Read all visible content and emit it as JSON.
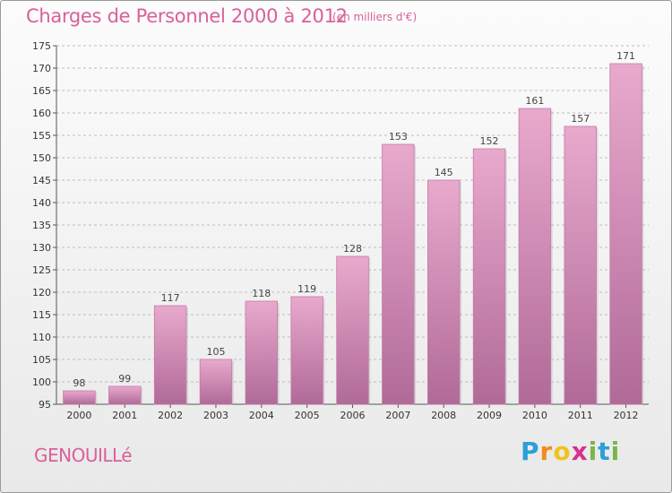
{
  "title": "Charges de Personnel 2000 à 2012",
  "subtitle": "(en milliers d'€)",
  "commune": "GENOUILLé",
  "brand": {
    "letters": [
      "P",
      "r",
      "o",
      "x",
      "i",
      "t",
      "i"
    ],
    "colors": [
      "#2b9fd8",
      "#f28c1e",
      "#f2c21e",
      "#d9308c",
      "#7ab648",
      "#2b9fd8",
      "#7ab648"
    ]
  },
  "colors": {
    "accent": "#d9609a",
    "bar_light": "#e8a8cc",
    "bar_dark": "#b06a98"
  },
  "chart_data": {
    "type": "bar",
    "title": "Charges de Personnel 2000 à 2012",
    "subtitle": "(en milliers d'€)",
    "categories": [
      "2000",
      "2001",
      "2002",
      "2003",
      "2004",
      "2005",
      "2006",
      "2007",
      "2008",
      "2009",
      "2010",
      "2011",
      "2012"
    ],
    "values": [
      98,
      99,
      117,
      105,
      118,
      119,
      128,
      153,
      145,
      152,
      161,
      157,
      171
    ],
    "ylim": [
      95,
      175
    ],
    "yticks": [
      95,
      100,
      105,
      110,
      115,
      120,
      125,
      130,
      135,
      140,
      145,
      150,
      155,
      160,
      165,
      170,
      175
    ],
    "grid": true,
    "xlabel": "",
    "ylabel": ""
  }
}
